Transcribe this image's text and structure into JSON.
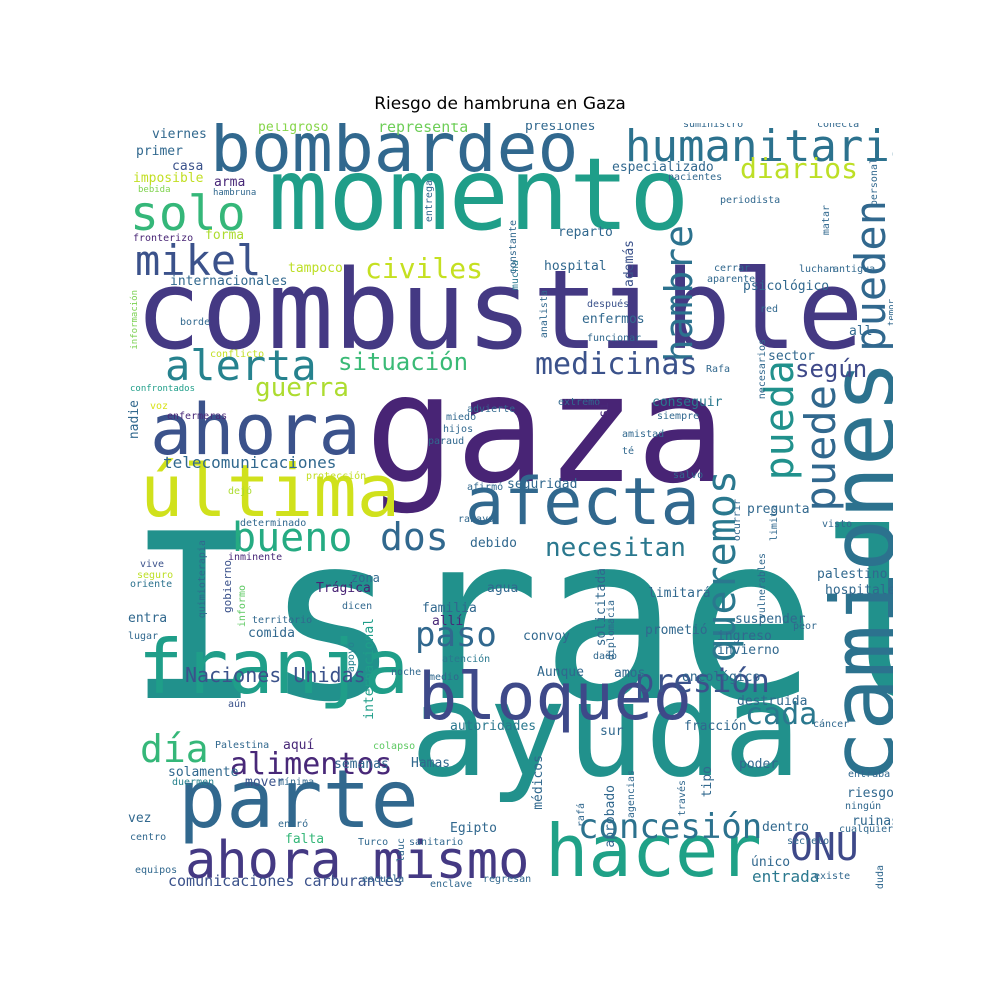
{
  "title": "Riesgo de hambruna en Gaza",
  "palette": "viridis",
  "words": [
    {
      "text": "Israel",
      "color": "#21918c"
    },
    {
      "text": "gaza",
      "color": "#482475"
    },
    {
      "text": "ayuda",
      "color": "#21918c"
    },
    {
      "text": "combustible",
      "color": "#443983"
    },
    {
      "text": "momento",
      "color": "#1f9e89"
    },
    {
      "text": "bombardeo",
      "color": "#31688e"
    },
    {
      "text": "camiones",
      "color": "#2c728e"
    },
    {
      "text": "parte",
      "color": "#31688e"
    },
    {
      "text": "franja",
      "color": "#1f9e89"
    },
    {
      "text": "hacer",
      "color": "#1fa187"
    },
    {
      "text": "bloqueo",
      "color": "#3e4989"
    },
    {
      "text": "afecta",
      "color": "#31688e"
    },
    {
      "text": "ahora",
      "color": "#3b528b"
    },
    {
      "text": "última",
      "color": "#d0e11c"
    },
    {
      "text": "humanitaria",
      "color": "#2c728e"
    },
    {
      "text": "ahora mismo",
      "color": "#443983"
    },
    {
      "text": "solo",
      "color": "#35b779"
    },
    {
      "text": "alerta",
      "color": "#26828e"
    },
    {
      "text": "mikel",
      "color": "#3b528b"
    },
    {
      "text": "pueden",
      "color": "#31688e"
    },
    {
      "text": "puede",
      "color": "#31688e"
    },
    {
      "text": "hambre",
      "color": "#2c728e"
    },
    {
      "text": "pueda",
      "color": "#21918c"
    },
    {
      "text": "bueno",
      "color": "#25ab82"
    },
    {
      "text": "dos",
      "color": "#31688e"
    },
    {
      "text": "concesión",
      "color": "#2c728e"
    },
    {
      "text": "presión",
      "color": "#3b528b"
    },
    {
      "text": "ONU",
      "color": "#3e4989"
    },
    {
      "text": "día",
      "color": "#35b779"
    },
    {
      "text": "paso",
      "color": "#31688e"
    },
    {
      "text": "alimentos",
      "color": "#482878"
    },
    {
      "text": "medicinas",
      "color": "#3b528b"
    },
    {
      "text": "diarios",
      "color": "#bddf26"
    },
    {
      "text": "civiles",
      "color": "#c5e021"
    },
    {
      "text": "guerra",
      "color": "#addc30"
    },
    {
      "text": "situación",
      "color": "#3aba76"
    },
    {
      "text": "queremos",
      "color": "#2a788e"
    },
    {
      "text": "cada",
      "color": "#2a788e"
    },
    {
      "text": "necesitan",
      "color": "#2a788e"
    },
    {
      "text": "según",
      "color": "#3e4989"
    },
    {
      "text": "Naciones Unidas",
      "color": "#3b528b"
    },
    {
      "text": "telecomunicaciones",
      "color": "#31688e"
    },
    {
      "text": "entrada",
      "color": "#2a788e"
    },
    {
      "text": "comunicaciones carburantes",
      "color": "#3b528b"
    },
    {
      "text": "representa",
      "color": "#6ece58"
    },
    {
      "text": "presiones",
      "color": "#31688e"
    },
    {
      "text": "peligroso",
      "color": "#86d549"
    },
    {
      "text": "viernes",
      "color": "#31688e"
    },
    {
      "text": "primer",
      "color": "#31688e"
    },
    {
      "text": "casa",
      "color": "#3b528b"
    },
    {
      "text": "imposible",
      "color": "#c2df23"
    },
    {
      "text": "arma",
      "color": "#482878"
    },
    {
      "text": "bebida",
      "color": "#7fd34e"
    },
    {
      "text": "hambruna",
      "color": "#31688e"
    },
    {
      "text": "fronterizo",
      "color": "#482475"
    },
    {
      "text": "forma",
      "color": "#addc30"
    },
    {
      "text": "tampoco",
      "color": "#bddf26"
    },
    {
      "text": "internacionales",
      "color": "#31688e"
    },
    {
      "text": "información",
      "color": "#7ad151"
    },
    {
      "text": "borde",
      "color": "#31688e"
    },
    {
      "text": "conflicto",
      "color": "#c2df23"
    },
    {
      "text": "confrontados",
      "color": "#1f9e89"
    },
    {
      "text": "voz",
      "color": "#d8e219"
    },
    {
      "text": "enfermeras",
      "color": "#482878"
    },
    {
      "text": "nadie",
      "color": "#31688e"
    },
    {
      "text": "protección",
      "color": "#c2df23"
    },
    {
      "text": "dejó",
      "color": "#addc30"
    },
    {
      "text": "determinado",
      "color": "#31688e"
    },
    {
      "text": "vive",
      "color": "#3b528b"
    },
    {
      "text": "seguro",
      "color": "#bddf26"
    },
    {
      "text": "oriente",
      "color": "#2c728e"
    },
    {
      "text": "inminente",
      "color": "#482878"
    },
    {
      "text": "quimioterapia",
      "color": "#31688e"
    },
    {
      "text": "gobierno",
      "color": "#3b528b"
    },
    {
      "text": "informo",
      "color": "#5ec962"
    },
    {
      "text": "Trágica",
      "color": "#482475"
    },
    {
      "text": "territorio",
      "color": "#31688e"
    },
    {
      "text": "zona",
      "color": "#31688e"
    },
    {
      "text": "dicen",
      "color": "#31688e"
    },
    {
      "text": "entra",
      "color": "#31688e"
    },
    {
      "text": "lugar",
      "color": "#31688e"
    },
    {
      "text": "comida",
      "color": "#31688e"
    },
    {
      "text": "familia",
      "color": "#31688e"
    },
    {
      "text": "allí",
      "color": "#482878"
    },
    {
      "text": "apoyo",
      "color": "#26828e"
    },
    {
      "text": "internacional",
      "color": "#1f9e89"
    },
    {
      "text": "noche",
      "color": "#31688e"
    },
    {
      "text": "medio",
      "color": "#31688e"
    },
    {
      "text": "atención",
      "color": "#2a788e"
    },
    {
      "text": "aún",
      "color": "#3b528b"
    },
    {
      "text": "Palestina",
      "color": "#31688e"
    },
    {
      "text": "colapso",
      "color": "#5ec962"
    },
    {
      "text": "aquí",
      "color": "#482878"
    },
    {
      "text": "solamente",
      "color": "#31688e"
    },
    {
      "text": "duermen",
      "color": "#26828e"
    },
    {
      "text": "mover",
      "color": "#3b528b"
    },
    {
      "text": "mínima",
      "color": "#31688e"
    },
    {
      "text": "semanas",
      "color": "#31688e"
    },
    {
      "text": "Hamas",
      "color": "#31688e"
    },
    {
      "text": "autoridades",
      "color": "#2a788e"
    },
    {
      "text": "vez",
      "color": "#31688e"
    },
    {
      "text": "centro",
      "color": "#31688e"
    },
    {
      "text": "entró",
      "color": "#31688e"
    },
    {
      "text": "escuela",
      "color": "#31688e"
    },
    {
      "text": "lauc",
      "color": "#31688e"
    },
    {
      "text": "Turco",
      "color": "#31688e"
    },
    {
      "text": "sanitario",
      "color": "#31688e"
    },
    {
      "text": "falta",
      "color": "#35b779"
    },
    {
      "text": "Egipto",
      "color": "#31688e"
    },
    {
      "text": "equipos",
      "color": "#31688e"
    },
    {
      "text": "enclave",
      "color": "#31688e"
    },
    {
      "text": "regresan",
      "color": "#31688e"
    },
    {
      "text": "Rafa",
      "color": "#31688e"
    },
    {
      "text": "conseguir",
      "color": "#2a788e"
    },
    {
      "text": "extremo",
      "color": "#31688e"
    },
    {
      "text": "advierte",
      "color": "#31688e"
    },
    {
      "text": "miedo",
      "color": "#31688e"
    },
    {
      "text": "hijos",
      "color": "#31688e"
    },
    {
      "text": "siempre",
      "color": "#31688e"
    },
    {
      "text": "amistad",
      "color": "#31688e"
    },
    {
      "text": "paraud",
      "color": "#31688e"
    },
    {
      "text": "té",
      "color": "#31688e"
    },
    {
      "text": "sí",
      "color": "#482878"
    },
    {
      "text": "seguridad",
      "color": "#31688e"
    },
    {
      "text": "afirmó",
      "color": "#31688e"
    },
    {
      "text": "salvo",
      "color": "#31688e"
    },
    {
      "text": "rabaya",
      "color": "#31688e"
    },
    {
      "text": "debido",
      "color": "#31688e"
    },
    {
      "text": "pregunta",
      "color": "#31688e"
    },
    {
      "text": "visto",
      "color": "#31688e"
    },
    {
      "text": "enfermos",
      "color": "#31688e"
    },
    {
      "text": "después",
      "color": "#3b528b"
    },
    {
      "text": "funcionar",
      "color": "#31688e"
    },
    {
      "text": "analista",
      "color": "#31688e"
    },
    {
      "text": "hospital",
      "color": "#31688e"
    },
    {
      "text": "además",
      "color": "#3b528b"
    },
    {
      "text": "reparto",
      "color": "#31688e"
    },
    {
      "text": "mucha",
      "color": "#2a788e"
    },
    {
      "text": "constante",
      "color": "#31688e"
    },
    {
      "text": "entrega",
      "color": "#31688e"
    },
    {
      "text": "especializado",
      "color": "#31688e"
    },
    {
      "text": "pacientes",
      "color": "#31688e"
    },
    {
      "text": "suministro",
      "color": "#31688e"
    },
    {
      "text": "conecta",
      "color": "#31688e"
    },
    {
      "text": "personal",
      "color": "#31688e"
    },
    {
      "text": "periodista",
      "color": "#31688e"
    },
    {
      "text": "matar",
      "color": "#31688e"
    },
    {
      "text": "cerrar",
      "color": "#31688e"
    },
    {
      "text": "aparente",
      "color": "#31688e"
    },
    {
      "text": "psicológico",
      "color": "#31688e"
    },
    {
      "text": "luchan",
      "color": "#31688e"
    },
    {
      "text": "antigua",
      "color": "#31688e"
    },
    {
      "text": "red",
      "color": "#31688e"
    },
    {
      "text": "all",
      "color": "#31688e"
    },
    {
      "text": "temor",
      "color": "#31688e"
    },
    {
      "text": "necesarios",
      "color": "#31688e"
    },
    {
      "text": "sector",
      "color": "#31688e"
    },
    {
      "text": "solicitada",
      "color": "#31688e"
    },
    {
      "text": "diplomacia",
      "color": "#31688e"
    },
    {
      "text": "ocurrir",
      "color": "#31688e"
    },
    {
      "text": "vulnerables",
      "color": "#31688e"
    },
    {
      "text": "limita",
      "color": "#31688e"
    },
    {
      "text": "palestino",
      "color": "#31688e"
    },
    {
      "text": "hospitales",
      "color": "#31688e"
    },
    {
      "text": "limitará",
      "color": "#31688e"
    },
    {
      "text": "agua",
      "color": "#31688e"
    },
    {
      "text": "suspender",
      "color": "#31688e"
    },
    {
      "text": "peor",
      "color": "#31688e"
    },
    {
      "text": "prometió",
      "color": "#31688e"
    },
    {
      "text": "ingreso",
      "color": "#31688e"
    },
    {
      "text": "invierno",
      "color": "#31688e"
    },
    {
      "text": "convoy",
      "color": "#31688e"
    },
    {
      "text": "dado",
      "color": "#31688e"
    },
    {
      "text": "amos",
      "color": "#31688e"
    },
    {
      "text": "Aunque",
      "color": "#31688e"
    },
    {
      "text": "oncológico",
      "color": "#31688e"
    },
    {
      "text": "destruida",
      "color": "#31688e"
    },
    {
      "text": "cáncer",
      "color": "#31688e"
    },
    {
      "text": "fracción",
      "color": "#31688e"
    },
    {
      "text": "sur",
      "color": "#31688e"
    },
    {
      "text": "médicos",
      "color": "#31688e"
    },
    {
      "text": "tipo",
      "color": "#31688e"
    },
    {
      "text": "poder",
      "color": "#31688e"
    },
    {
      "text": "aprobado",
      "color": "#31688e"
    },
    {
      "text": "agencias",
      "color": "#31688e"
    },
    {
      "text": "través",
      "color": "#31688e"
    },
    {
      "text": "rafá",
      "color": "#31688e"
    },
    {
      "text": "entraba",
      "color": "#31688e"
    },
    {
      "text": "riesgo",
      "color": "#31688e"
    },
    {
      "text": "ningún",
      "color": "#31688e"
    },
    {
      "text": "ruinas",
      "color": "#31688e"
    },
    {
      "text": "dentro",
      "color": "#31688e"
    },
    {
      "text": "cualquier",
      "color": "#31688e"
    },
    {
      "text": "secreto",
      "color": "#31688e"
    },
    {
      "text": "único",
      "color": "#31688e"
    },
    {
      "text": "duda",
      "color": "#31688e"
    },
    {
      "text": "existe",
      "color": "#31688e"
    },
    {
      "text": "veces",
      "color": "#31688e"
    }
  ]
}
